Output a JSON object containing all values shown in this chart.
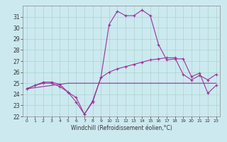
{
  "xlabel": "Windchill (Refroidissement éolien,°C)",
  "background_color": "#cce9f0",
  "grid_color": "#aad4cc",
  "line_color": "#993399",
  "x": [
    0,
    1,
    2,
    3,
    4,
    5,
    6,
    7,
    8,
    9,
    10,
    11,
    12,
    13,
    14,
    15,
    16,
    17,
    18,
    19,
    20,
    21,
    22,
    23
  ],
  "line1": [
    24.5,
    24.8,
    25.1,
    25.1,
    24.9,
    24.2,
    23.3,
    22.2,
    23.3,
    25.5,
    30.3,
    31.5,
    31.1,
    31.1,
    31.6,
    31.1,
    28.5,
    27.1,
    27.2,
    27.2,
    25.6,
    25.9,
    24.1,
    24.8
  ],
  "line2": [
    24.5,
    24.8,
    25.0,
    25.0,
    24.7,
    24.2,
    23.7,
    22.2,
    23.4,
    25.5,
    26.0,
    26.3,
    26.5,
    26.7,
    26.9,
    27.1,
    27.2,
    27.3,
    27.3,
    25.8,
    25.3,
    25.7,
    25.3,
    25.8
  ],
  "line3": [
    24.5,
    24.6,
    24.7,
    24.8,
    24.9,
    25.0,
    25.0,
    25.0,
    25.0,
    25.0,
    25.0,
    25.0,
    25.0,
    25.0,
    25.0,
    25.0,
    25.0,
    25.0,
    25.0,
    25.0,
    25.0,
    25.0,
    25.0,
    25.0
  ],
  "ylim": [
    22,
    32
  ],
  "xlim": [
    -0.5,
    23.5
  ],
  "yticks": [
    22,
    23,
    24,
    25,
    26,
    27,
    28,
    29,
    30,
    31
  ],
  "xticks": [
    0,
    1,
    2,
    3,
    4,
    5,
    6,
    7,
    8,
    9,
    10,
    11,
    12,
    13,
    14,
    15,
    16,
    17,
    18,
    19,
    20,
    21,
    22,
    23
  ]
}
